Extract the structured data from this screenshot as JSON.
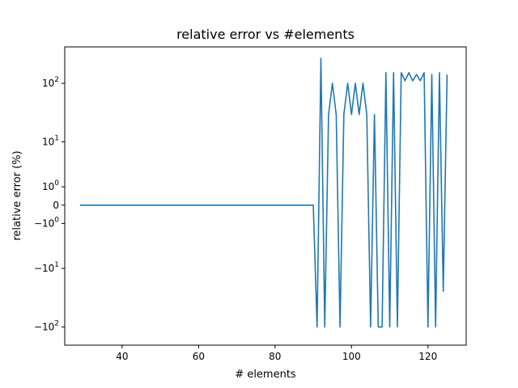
{
  "chart_data": {
    "type": "line",
    "title": "relative error vs #elements",
    "xlabel": "# elements",
    "ylabel": "relative error (%)",
    "yscale": "symlog",
    "xlim": [
      25,
      130
    ],
    "ylim": [
      -200,
      400
    ],
    "x_ticks": [
      40,
      60,
      80,
      100,
      120
    ],
    "y_ticks": [
      {
        "value": 100,
        "label": "10^2"
      },
      {
        "value": 10,
        "label": "10^1"
      },
      {
        "value": 1,
        "label": "10^0"
      },
      {
        "value": 0,
        "label": "0"
      },
      {
        "value": -1,
        "label": "−10^0"
      },
      {
        "value": -10,
        "label": "−10^1"
      },
      {
        "value": -100,
        "label": "−10^2"
      }
    ],
    "grid": false,
    "line_color": "#1f77b4",
    "series": [
      {
        "x": [
          29,
          30,
          40,
          50,
          60,
          70,
          80,
          89,
          90,
          91,
          92,
          93,
          94,
          95,
          96,
          97,
          98,
          99,
          100,
          101,
          102,
          103,
          104,
          105,
          106,
          107,
          108,
          109,
          110,
          111,
          112,
          113,
          114,
          115,
          116,
          117,
          118,
          119,
          120,
          121,
          122,
          123,
          124,
          125
        ],
        "values": [
          0,
          0,
          0,
          0,
          0,
          0,
          0,
          0,
          0,
          -100,
          260,
          -100,
          30,
          100,
          30,
          -100,
          30,
          100,
          30,
          100,
          30,
          100,
          30,
          -100,
          30,
          -100,
          -100,
          150,
          -100,
          150,
          -100,
          150,
          110,
          150,
          110,
          140,
          110,
          150,
          -100,
          140,
          -100,
          150,
          -25,
          140
        ]
      }
    ]
  }
}
